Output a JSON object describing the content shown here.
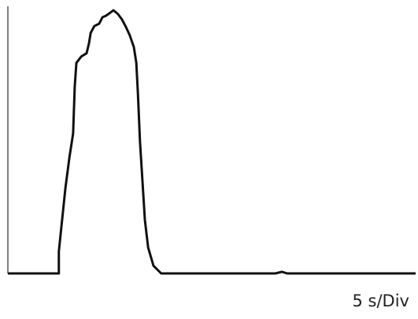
{
  "chart_data": {
    "type": "line",
    "x_label": "5 s/Div",
    "color": "#111111",
    "xlim": [
      0,
      100
    ],
    "ylim": [
      0,
      100
    ],
    "x": [
      0,
      12.5,
      12.5,
      13.1,
      14.1,
      15.1,
      16.0,
      16.4,
      16.8,
      18.0,
      19.3,
      19.9,
      20.3,
      21.2,
      22.4,
      23.2,
      24.1,
      25.1,
      25.9,
      27.0,
      28.0,
      29.0,
      29.9,
      30.9,
      31.5,
      31.9,
      32.4,
      33.0,
      33.6,
      34.4,
      35.7,
      37.6,
      65.6,
      67.2,
      68.5,
      100
    ],
    "values": [
      0,
      0,
      8.2,
      17.1,
      31.8,
      43.5,
      52.4,
      70.0,
      78.8,
      81.2,
      82.4,
      86.2,
      90.0,
      92.6,
      93.5,
      95.9,
      96.5,
      97.6,
      98.5,
      97.1,
      95.0,
      92.1,
      89.1,
      84.7,
      78.8,
      67.1,
      49.4,
      34.7,
      20.0,
      9.7,
      2.9,
      0,
      0,
      0.6,
      0,
      0
    ]
  }
}
